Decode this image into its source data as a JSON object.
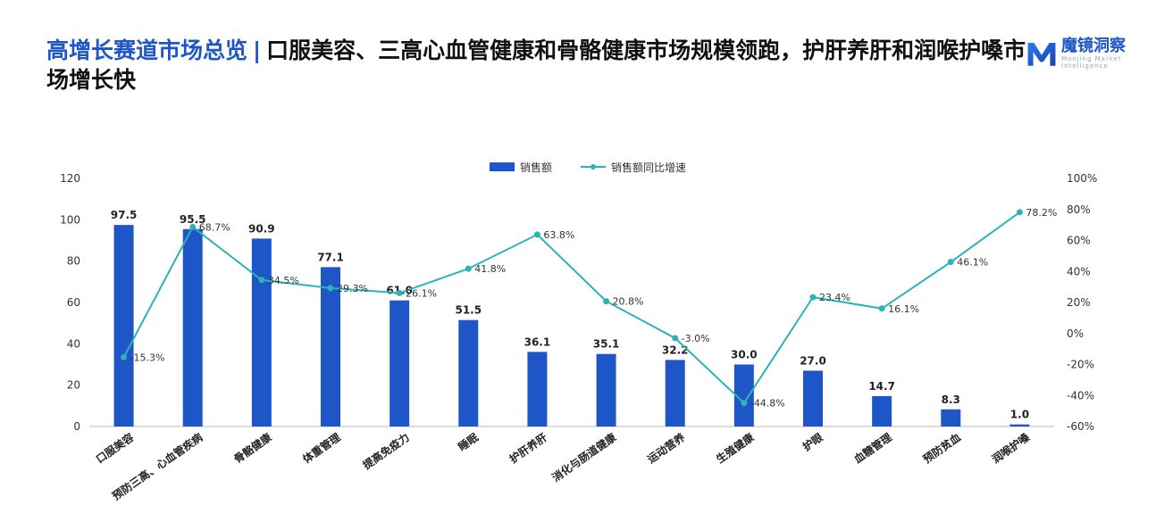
{
  "header": {
    "title_lead": "高增长赛道市场总览",
    "title_sep": "|",
    "title_rest": "口服美容、三高心血管健康和骨骼健康市场规模领跑，护肝养肝和润喉护嗓市场增长快"
  },
  "logo": {
    "name": "魔镜洞察",
    "subtitle": "Moojing Market Intelligence",
    "mark": "M"
  },
  "chart_data": {
    "type": "bar",
    "title": "",
    "categories": [
      "口服美容",
      "预防三高、心血管疾病",
      "骨骼健康",
      "体重管理",
      "提高免疫力",
      "睡眠",
      "护肝养肝",
      "消化与肠道健康",
      "运动营养",
      "生殖健康",
      "护眼",
      "血糖管理",
      "预防贫血",
      "润喉护嗓"
    ],
    "series": [
      {
        "name": "销售额",
        "type": "bar",
        "axis": "left",
        "color": "#1f56c7",
        "values": [
          97.5,
          95.5,
          90.9,
          77.1,
          61.0,
          51.5,
          36.1,
          35.1,
          32.2,
          30.0,
          27.0,
          14.7,
          8.3,
          1.0
        ]
      },
      {
        "name": "销售额同比增速",
        "type": "line",
        "axis": "right",
        "color": "#2bb3b8",
        "values": [
          -15.3,
          68.7,
          34.5,
          29.3,
          26.1,
          41.8,
          63.8,
          20.8,
          -3.0,
          -44.8,
          23.4,
          16.1,
          46.1,
          78.2
        ]
      }
    ],
    "value_labels": [
      "97.5",
      "95.5",
      "90.9",
      "77.1",
      "61.0",
      "51.5",
      "36.1",
      "35.1",
      "32.2",
      "30.0",
      "27.0",
      "14.7",
      "8.3",
      "1.0"
    ],
    "pct_labels": [
      "-15.3%",
      "68.7%",
      "34.5%",
      "29.3%",
      "26.1%",
      "41.8%",
      "63.8%",
      "20.8%",
      "-3.0%",
      "-44.8%",
      "23.4%",
      "16.1%",
      "46.1%",
      "78.2%"
    ],
    "y_left": {
      "min": 0,
      "max": 120,
      "step": 20,
      "ticks": [
        "0",
        "20",
        "40",
        "60",
        "80",
        "100",
        "120"
      ]
    },
    "y_right": {
      "min": -60,
      "max": 100,
      "step": 20,
      "ticks": [
        "-60%",
        "-40%",
        "-20%",
        "0%",
        "20%",
        "40%",
        "60%",
        "80%",
        "100%"
      ]
    },
    "legend": {
      "position": "top-center",
      "items": [
        "销售额",
        "销售额同比增速"
      ]
    },
    "grid": false
  }
}
